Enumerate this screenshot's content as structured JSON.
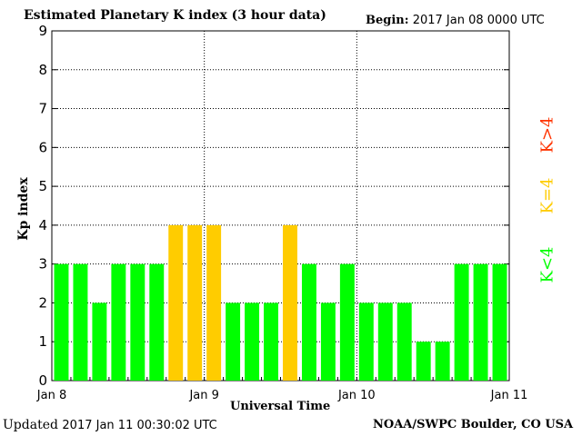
{
  "header": {
    "title": "Estimated Planetary K index (3 hour data)",
    "begin_label": "Begin:",
    "begin_value": "2017 Jan 08 0000 UTC"
  },
  "footer": {
    "updated_label": "Updated",
    "updated_value": "2017 Jan 11 00:30:02 UTC",
    "credit": "NOAA/SWPC Boulder, CO USA"
  },
  "legend": {
    "low": "K<4",
    "mid": "K=4",
    "high": "K>4"
  },
  "colors": {
    "low": "#00ff00",
    "mid": "#ffcc00",
    "high": "#ff3300",
    "grid": "#000000",
    "background": "#ffffff"
  },
  "chart_data": {
    "type": "bar",
    "title": "Estimated Planetary K index (3 hour data)",
    "xlabel": "Universal Time",
    "ylabel": "Kp index",
    "ylim": [
      0,
      9
    ],
    "yticks": [
      "0",
      "1",
      "2",
      "3",
      "4",
      "5",
      "6",
      "7",
      "8",
      "9"
    ],
    "xticks": [
      "Jan 8",
      "Jan 9",
      "Jan 10",
      "Jan 11"
    ],
    "grid": "dotted",
    "legend_position": "right",
    "categories": [
      "Jan 8 00",
      "Jan 8 03",
      "Jan 8 06",
      "Jan 8 09",
      "Jan 8 12",
      "Jan 8 15",
      "Jan 8 18",
      "Jan 8 21",
      "Jan 9 00",
      "Jan 9 03",
      "Jan 9 06",
      "Jan 9 09",
      "Jan 9 12",
      "Jan 9 15",
      "Jan 9 18",
      "Jan 9 21",
      "Jan 10 00",
      "Jan 10 03",
      "Jan 10 06",
      "Jan 10 09",
      "Jan 10 12",
      "Jan 10 15",
      "Jan 10 18",
      "Jan 10 21"
    ],
    "values": [
      3,
      3,
      2,
      3,
      3,
      3,
      4,
      4,
      4,
      2,
      2,
      2,
      4,
      3,
      2,
      3,
      2,
      2,
      2,
      1,
      1,
      3,
      3,
      3
    ]
  }
}
